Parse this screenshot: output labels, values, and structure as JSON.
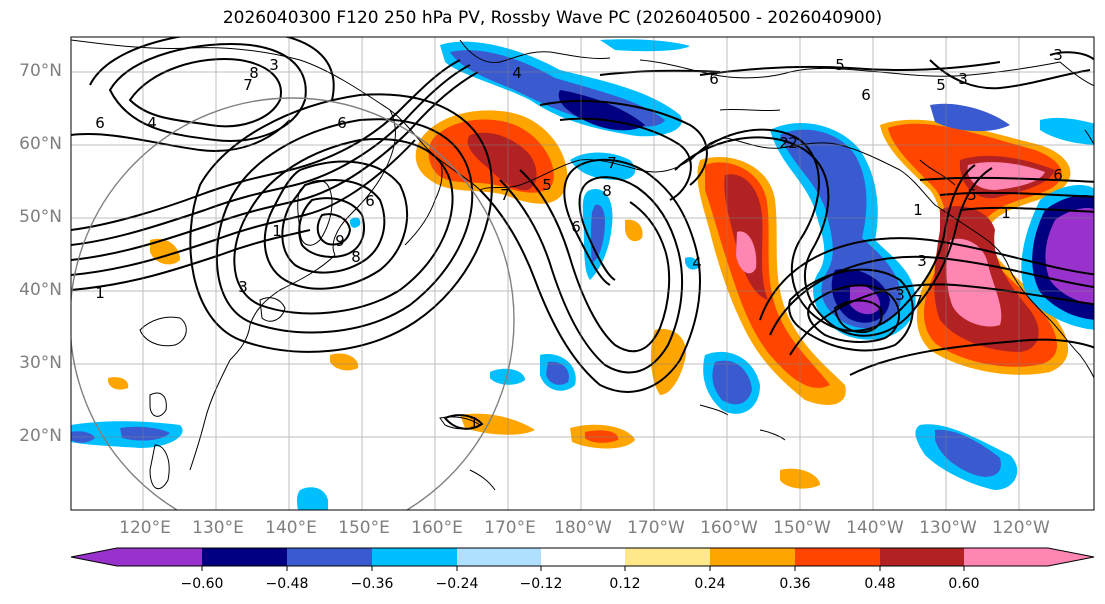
{
  "title": "2026040300 F120 250 hPa PV, Rossby Wave PC (2026040500 - 2026040900)",
  "lat_labels": [
    "70°N",
    "60°N",
    "50°N",
    "40°N",
    "30°N",
    "20°N"
  ],
  "lon_labels": [
    "120°E",
    "130°E",
    "140°E",
    "150°E",
    "160°E",
    "170°E",
    "180°W",
    "170°W",
    "160°W",
    "150°W",
    "140°W",
    "130°W",
    "120°W"
  ],
  "colorbar": {
    "tick_labels": [
      "−0.60",
      "−0.48",
      "−0.36",
      "−0.24",
      "−0.12",
      "0.12",
      "0.24",
      "0.36",
      "0.48",
      "0.60"
    ],
    "colors": [
      "#9932cc",
      "#000080",
      "#3a5bcf",
      "#00bfff",
      "#b0e0ff",
      "#ffffff",
      "#ffe88a",
      "#ffa500",
      "#ff4500",
      "#b22222",
      "#ff85b3"
    ]
  },
  "contour_labels": [
    "8",
    "5",
    "7",
    "3",
    "4",
    "6",
    "6",
    "4",
    "5",
    "6",
    "3",
    "7",
    "1",
    "3",
    "2",
    "6",
    "9",
    "8",
    "5",
    "3",
    "6",
    "7",
    "8",
    "6",
    "1",
    "2",
    "4",
    "3",
    "3",
    "1",
    "5",
    "6",
    "7",
    "1",
    "1"
  ]
}
